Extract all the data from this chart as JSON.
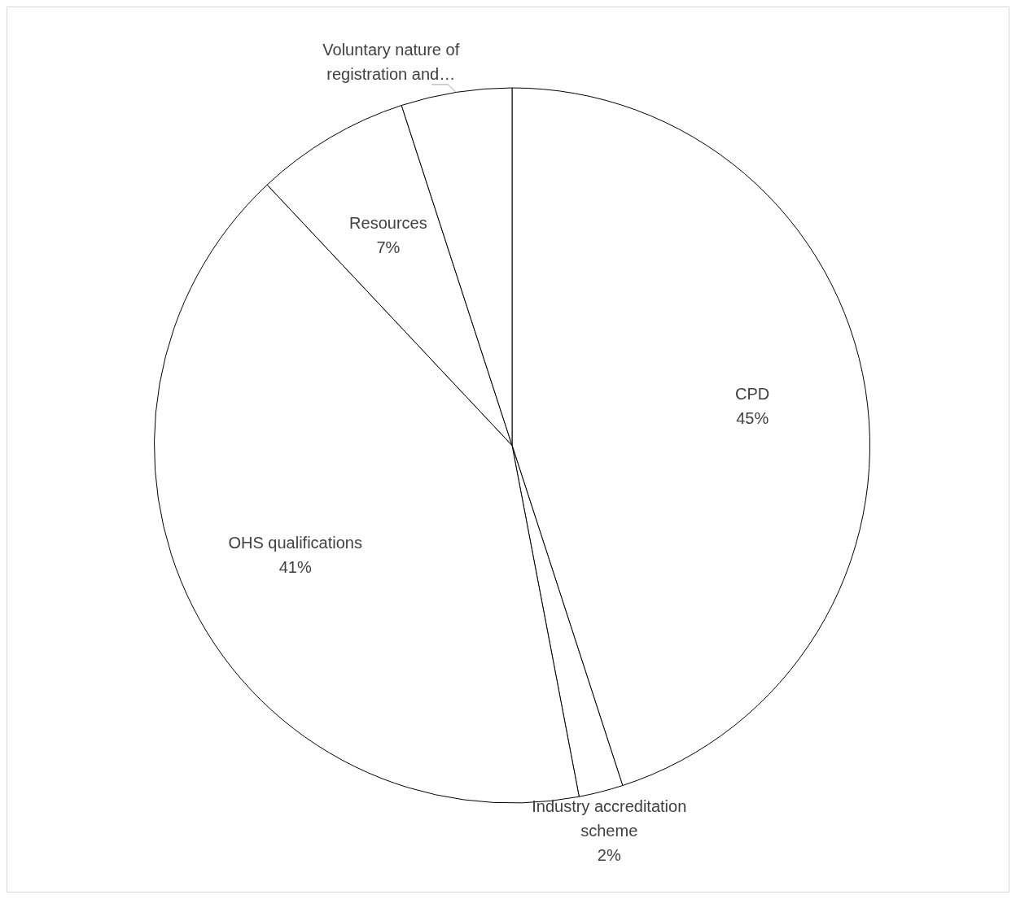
{
  "chart_data": {
    "type": "pie",
    "categories": [
      "CPD",
      "Industry accreditation scheme",
      "OHS qualifications",
      "Resources",
      "Voluntary nature of registration and…"
    ],
    "values": [
      45,
      2,
      41,
      7,
      5
    ],
    "value_labels": [
      "45%",
      "2%",
      "41%",
      "7%",
      null
    ],
    "colors": [
      "#ffffff",
      "#ffffff",
      "#ffffff",
      "#ffffff",
      "#ffffff"
    ],
    "legend": false
  }
}
